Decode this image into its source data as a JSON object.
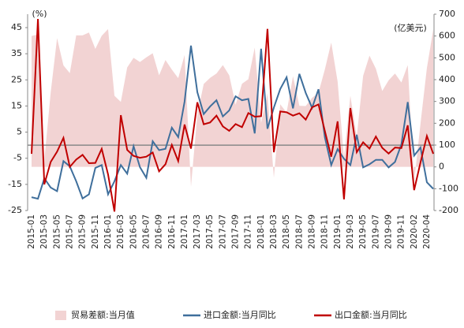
{
  "chart_data": {
    "type": "line",
    "y_unit_label": "(%)",
    "y2_unit_label": "(亿美元)",
    "categories": [
      "2015-01",
      null,
      "2015-03",
      null,
      "2015-05",
      null,
      "2015-07",
      null,
      "2015-09",
      null,
      "2015-11",
      null,
      "2016-01",
      null,
      "2016-03",
      null,
      "2016-05",
      null,
      "2016-07",
      null,
      "2016-09",
      null,
      "2016-11",
      null,
      "2017-01",
      null,
      "2017-03",
      null,
      "2017-05",
      null,
      "2017-07",
      null,
      "2017-09",
      null,
      "2017-11",
      null,
      "2018-01",
      null,
      "2018-03",
      null,
      "2018-05",
      null,
      "2018-07",
      null,
      "2018-09",
      null,
      "2018-11",
      null,
      "2019-01",
      null,
      "2019-03",
      null,
      "2019-05",
      null,
      "2019-07",
      null,
      "2019-09",
      null,
      "2019-11",
      null,
      "2020-02",
      null,
      "2020-04",
      null
    ],
    "series": [
      {
        "name": "贸易差额:当月值",
        "color": "#f2d3d3",
        "kind": "area",
        "axis": "y2",
        "values": [
          600,
          607,
          30,
          341,
          590,
          465,
          430,
          603,
          603,
          616,
          541,
          601,
          632,
          326,
          298,
          456,
          500,
          481,
          502,
          521,
          420,
          490,
          446,
          407,
          513,
          -91,
          240,
          380,
          408,
          428,
          467,
          420,
          285,
          381,
          402,
          547,
          202,
          337,
          -50,
          287,
          249,
          416,
          280,
          279,
          317,
          340,
          447,
          570,
          391,
          41,
          326,
          138,
          417,
          510,
          450,
          348,
          397,
          428,
          387,
          467,
          -71,
          199,
          453,
          630
        ]
      },
      {
        "name": "进口金额:当月同比",
        "color": "#3f6f9c",
        "kind": "line",
        "values": [
          -19.9,
          -20.5,
          -12.7,
          -16.2,
          -17.6,
          -6.1,
          -8.1,
          -13.8,
          -20.4,
          -18.8,
          -8.7,
          -7.6,
          -18.8,
          -13.8,
          -7.6,
          -10.9,
          -0.4,
          -8.4,
          -12.5,
          1.5,
          -1.9,
          -1.4,
          6.7,
          3.1,
          16.7,
          38.1,
          20.3,
          11.9,
          14.8,
          17.2,
          11,
          13.3,
          18.7,
          17.2,
          17.7,
          4.5,
          36.9,
          6.3,
          14.4,
          21.5,
          26,
          14.1,
          27.3,
          20,
          14.3,
          21.4,
          3,
          -7.6,
          -1.5,
          -5.2,
          -7.6,
          4,
          -8.5,
          -7.3,
          -5.6,
          -5.6,
          -8.5,
          -6.4,
          0.3,
          16.5,
          -4,
          -0.9,
          -14.2,
          -16.7
        ]
      },
      {
        "name": "出口金额:当月同比",
        "color": "#c00000",
        "kind": "line",
        "values": [
          -3.3,
          48.3,
          -15,
          -6.4,
          -2.5,
          2.8,
          -8.3,
          -5.5,
          -3.7,
          -6.9,
          -6.8,
          -1.4,
          -11.2,
          -25.4,
          11.5,
          -1.8,
          -4.1,
          -4.8,
          -4.4,
          -2.8,
          -10,
          -7.3,
          0.1,
          -6.1,
          7.9,
          -1.3,
          16.4,
          8,
          8.7,
          11.3,
          7.2,
          5.5,
          8.1,
          6.9,
          12.3,
          10.9,
          11.1,
          44.5,
          -2.7,
          12.9,
          12.6,
          11.3,
          12.2,
          9.8,
          14.5,
          15.6,
          5.4,
          -4.4,
          9.1,
          -20.7,
          14.2,
          -2.7,
          1.1,
          -1.3,
          3.3,
          -1,
          -3.2,
          -0.9,
          -1.1,
          7.6,
          -17.2,
          -6.6,
          3.5,
          -3.3
        ]
      }
    ],
    "ylim": [
      -25,
      45
    ],
    "yticks": [
      -25,
      -15,
      -5,
      5,
      15,
      25,
      35,
      45
    ],
    "y2lim": [
      -200,
      700
    ],
    "y2ticks": [
      -200,
      -100,
      0,
      100,
      200,
      300,
      400,
      500,
      600,
      700
    ]
  }
}
